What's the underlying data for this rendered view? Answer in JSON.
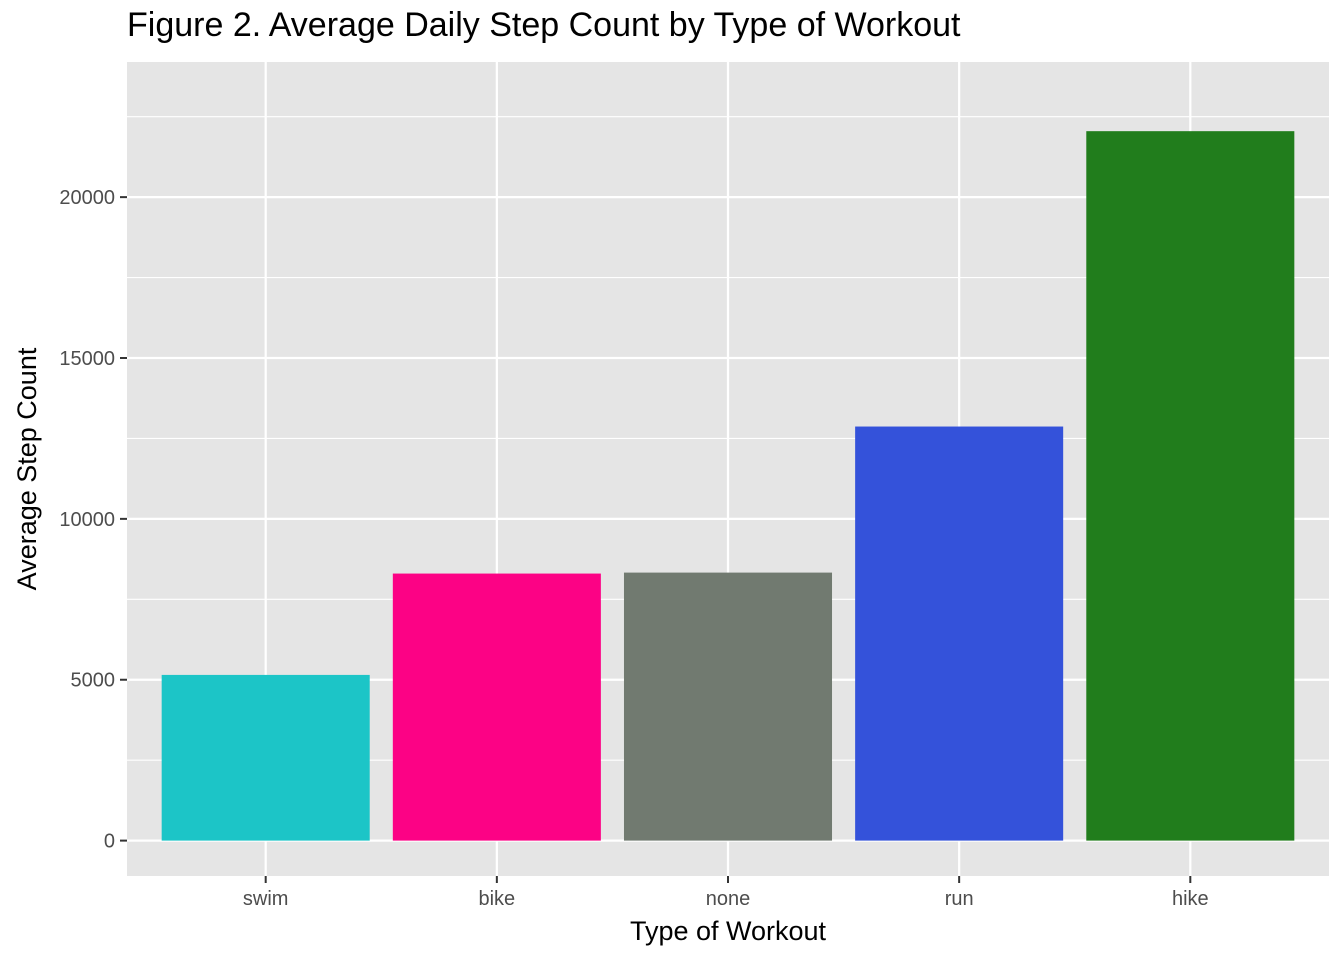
{
  "chart_data": {
    "type": "bar",
    "title": "Figure 2. Average Daily Step Count by Type of Workout",
    "xlabel": "Type of Workout",
    "ylabel": "Average Step Count",
    "categories": [
      "swim",
      "bike",
      "none",
      "run",
      "hike"
    ],
    "values": [
      5150,
      8300,
      8330,
      12870,
      22050
    ],
    "colors": [
      "#1cc5c7",
      "#fc0285",
      "#717a70",
      "#3452da",
      "#217d1c"
    ],
    "ylim": [
      -1100,
      24200
    ],
    "yticks": [
      0,
      5000,
      10000,
      15000,
      20000
    ],
    "grid": true,
    "legend": "none",
    "panel_background": "#e5e5e5",
    "gridline_color": "#ffffff"
  }
}
